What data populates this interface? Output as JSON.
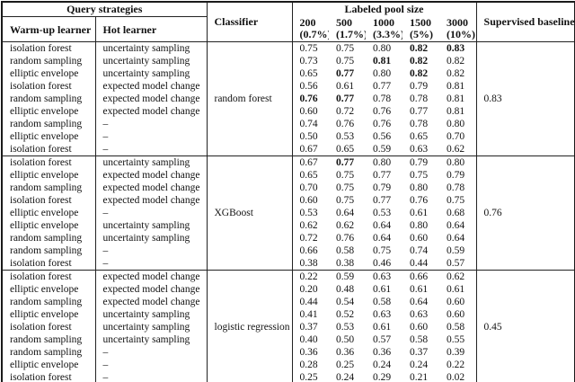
{
  "table": {
    "header": {
      "query_strategies": "Query strategies",
      "warmup": "Warm-up learner",
      "hot": "Hot learner",
      "classifier": "Classifier",
      "pool_size": "Labeled pool size",
      "pool_columns": [
        {
          "n": "200",
          "pct": "(0.7%)"
        },
        {
          "n": "500",
          "pct": "(1.7%)"
        },
        {
          "n": "1000",
          "pct": "(3.3%)"
        },
        {
          "n": "1500",
          "pct": "(5%)"
        },
        {
          "n": "3000",
          "pct": "(10%)"
        }
      ],
      "baseline": "Supervised baseline"
    },
    "blocks": [
      {
        "classifier": "random forest",
        "baseline": "0.83",
        "rows": [
          {
            "warmup": "isolation forest",
            "hot": "uncertainty sampling",
            "values": [
              "0.75",
              "0.75",
              "0.80",
              "0.82",
              "0.83"
            ],
            "bold": [
              3,
              4
            ]
          },
          {
            "warmup": "random sampling",
            "hot": "uncertainty sampling",
            "values": [
              "0.73",
              "0.75",
              "0.81",
              "0.82",
              "0.82"
            ],
            "bold": [
              2,
              3
            ]
          },
          {
            "warmup": "elliptic envelope",
            "hot": "uncertainty sampling",
            "values": [
              "0.65",
              "0.77",
              "0.80",
              "0.82",
              "0.82"
            ],
            "bold": [
              1,
              3
            ]
          },
          {
            "warmup": "isolation forest",
            "hot": "expected model change",
            "values": [
              "0.56",
              "0.61",
              "0.77",
              "0.79",
              "0.81"
            ],
            "bold": []
          },
          {
            "warmup": "random sampling",
            "hot": "expected model change",
            "values": [
              "0.76",
              "0.77",
              "0.78",
              "0.78",
              "0.81"
            ],
            "bold": [
              0,
              1
            ]
          },
          {
            "warmup": "elliptic envelope",
            "hot": "expected model change",
            "values": [
              "0.60",
              "0.72",
              "0.76",
              "0.77",
              "0.81"
            ],
            "bold": []
          },
          {
            "warmup": "random sampling",
            "hot": "–",
            "values": [
              "0.74",
              "0.76",
              "0.76",
              "0.78",
              "0.80"
            ],
            "bold": []
          },
          {
            "warmup": "elliptic envelope",
            "hot": "–",
            "values": [
              "0.50",
              "0.53",
              "0.56",
              "0.65",
              "0.70"
            ],
            "bold": []
          },
          {
            "warmup": "isolation forest",
            "hot": "–",
            "values": [
              "0.67",
              "0.65",
              "0.59",
              "0.63",
              "0.62"
            ],
            "bold": []
          }
        ]
      },
      {
        "classifier": "XGBoost",
        "baseline": "0.76",
        "rows": [
          {
            "warmup": "isolation forest",
            "hot": "uncertainty sampling",
            "values": [
              "0.67",
              "0.77",
              "0.80",
              "0.79",
              "0.80"
            ],
            "bold": [
              1
            ]
          },
          {
            "warmup": "elliptic envelope",
            "hot": "expected model change",
            "values": [
              "0.65",
              "0.75",
              "0.77",
              "0.75",
              "0.79"
            ],
            "bold": []
          },
          {
            "warmup": "random sampling",
            "hot": "expected model change",
            "values": [
              "0.70",
              "0.75",
              "0.79",
              "0.80",
              "0.78"
            ],
            "bold": []
          },
          {
            "warmup": "isolation forest",
            "hot": "expected model change",
            "values": [
              "0.60",
              "0.75",
              "0.77",
              "0.76",
              "0.75"
            ],
            "bold": []
          },
          {
            "warmup": "elliptic envelope",
            "hot": "–",
            "values": [
              "0.53",
              "0.64",
              "0.53",
              "0.61",
              "0.68"
            ],
            "bold": []
          },
          {
            "warmup": "elliptic envelope",
            "hot": "uncertainty sampling",
            "values": [
              "0.62",
              "0.62",
              "0.64",
              "0.80",
              "0.64"
            ],
            "bold": []
          },
          {
            "warmup": "random sampling",
            "hot": "uncertainty sampling",
            "values": [
              "0.72",
              "0.76",
              "0.64",
              "0.60",
              "0.64"
            ],
            "bold": []
          },
          {
            "warmup": "random sampling",
            "hot": "–",
            "values": [
              "0.66",
              "0.58",
              "0.75",
              "0.74",
              "0.59"
            ],
            "bold": []
          },
          {
            "warmup": "isolation forest",
            "hot": "–",
            "values": [
              "0.38",
              "0.38",
              "0.46",
              "0.44",
              "0.57"
            ],
            "bold": []
          }
        ]
      },
      {
        "classifier": "logistic regression",
        "baseline": "0.45",
        "rows": [
          {
            "warmup": "isolation forest",
            "hot": "expected model change",
            "values": [
              "0.22",
              "0.59",
              "0.63",
              "0.66",
              "0.62"
            ],
            "bold": []
          },
          {
            "warmup": "elliptic envelope",
            "hot": "expected model change",
            "values": [
              "0.20",
              "0.48",
              "0.61",
              "0.61",
              "0.61"
            ],
            "bold": []
          },
          {
            "warmup": "random sampling",
            "hot": "expected model change",
            "values": [
              "0.44",
              "0.54",
              "0.58",
              "0.64",
              "0.60"
            ],
            "bold": []
          },
          {
            "warmup": "elliptic envelope",
            "hot": "uncertainty sampling",
            "values": [
              "0.41",
              "0.52",
              "0.63",
              "0.63",
              "0.60"
            ],
            "bold": []
          },
          {
            "warmup": "isolation forest",
            "hot": "uncertainty sampling",
            "values": [
              "0.37",
              "0.53",
              "0.61",
              "0.60",
              "0.58"
            ],
            "bold": []
          },
          {
            "warmup": "random sampling",
            "hot": "uncertainty sampling",
            "values": [
              "0.40",
              "0.50",
              "0.57",
              "0.58",
              "0.55"
            ],
            "bold": []
          },
          {
            "warmup": "random sampling",
            "hot": "–",
            "values": [
              "0.36",
              "0.36",
              "0.36",
              "0.37",
              "0.39"
            ],
            "bold": []
          },
          {
            "warmup": "elliptic envelope",
            "hot": "–",
            "values": [
              "0.28",
              "0.25",
              "0.24",
              "0.24",
              "0.22"
            ],
            "bold": []
          },
          {
            "warmup": "isolation forest",
            "hot": "–",
            "values": [
              "0.25",
              "0.24",
              "0.29",
              "0.21",
              "0.02"
            ],
            "bold": []
          }
        ]
      }
    ]
  }
}
